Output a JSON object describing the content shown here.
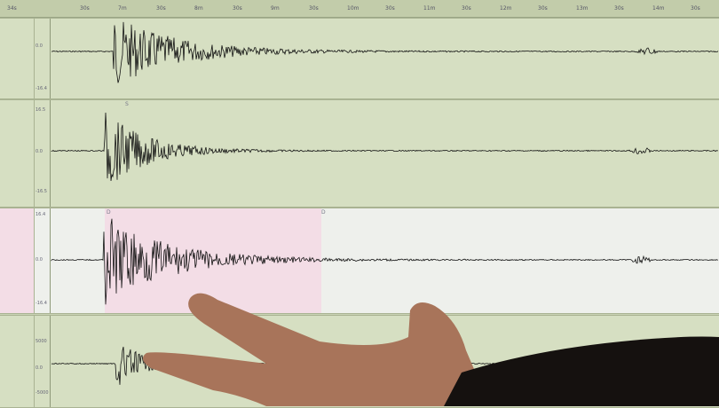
{
  "ruler": {
    "labels": [
      "34s",
      "30s",
      "7m",
      "30s",
      "8m",
      "30s",
      "9m",
      "30s",
      "10m",
      "30s",
      "11m",
      "30s",
      "12m",
      "30s",
      "13m",
      "30s",
      "14m",
      "30s"
    ]
  },
  "panels": [
    {
      "scale_top": "0.0",
      "scale_mid": "0.0",
      "scale_bot": "-16.4"
    },
    {
      "scale_top": "16.5",
      "scale_mid": "0.0",
      "scale_bot": "-16.5",
      "marker": "S"
    },
    {
      "scale_top": "16.4",
      "scale_mid": "0.0",
      "scale_bot": "-16.4",
      "marker_left": "D",
      "marker_right": "D",
      "selected": true
    },
    {
      "scale_top": "5000",
      "scale_mid": "0.0",
      "scale_bot": "-5000"
    }
  ],
  "colors": {
    "screen": "#d6dfc2",
    "selection": "#f3dde6",
    "trace": "#111111",
    "skin": "#b07a5e"
  }
}
